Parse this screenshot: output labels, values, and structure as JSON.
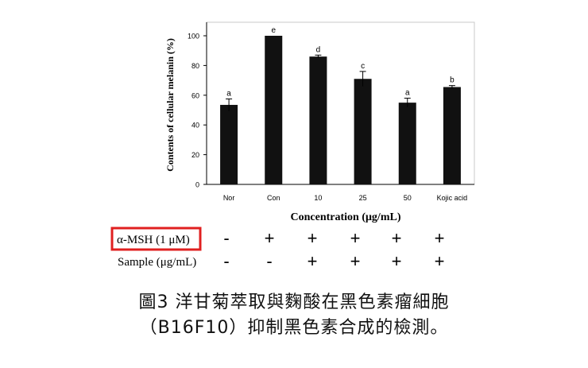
{
  "chart_data": {
    "type": "bar",
    "title": "",
    "xlabel": "Concentration (μg/mL)",
    "ylabel": "Contents of cellular melanin (%)",
    "ylim": [
      0,
      100
    ],
    "yticks": [
      "0",
      "20",
      "40",
      "60",
      "80",
      "100"
    ],
    "categories": [
      "Nor",
      "Con",
      "10",
      "25",
      "50",
      "Kojic acid"
    ],
    "values": [
      53.5,
      100,
      86,
      71,
      55,
      65.5
    ],
    "errors": [
      4,
      0,
      1,
      5,
      3,
      1
    ],
    "significance": [
      "a",
      "e",
      "d",
      "c",
      "a",
      "b"
    ],
    "bar_color": "#111111",
    "grid": false
  },
  "treatment_table": {
    "rows": [
      {
        "label": "α-MSH (1 μM)",
        "signs": [
          "-",
          "+",
          "+",
          "+",
          "+",
          "+"
        ],
        "highlight_color": "#e02020"
      },
      {
        "label": "Sample (μg/mL)",
        "signs": [
          "-",
          "-",
          "+",
          "+",
          "+",
          "+"
        ]
      }
    ]
  },
  "caption": {
    "line1": "圖3 洋甘菊萃取與麴酸在黑色素瘤細胞",
    "line2": "（B16F10）抑制黑色素合成的檢測。"
  }
}
